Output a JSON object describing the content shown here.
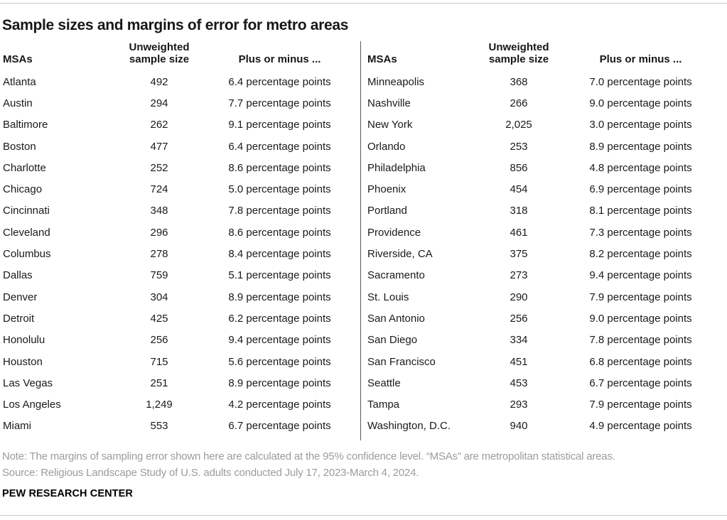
{
  "title": "Sample sizes and margins of error for metro areas",
  "header_labels": {
    "msa": "MSAs",
    "sample_size": "Unweighted\nsample size",
    "plus_minus": "Plus or minus ..."
  },
  "footer": {
    "note": "Note: The margins of sampling error shown here are calculated at the 95% confidence level. “MSAs” are metropolitan statistical areas.",
    "source": "Source: Religious Landscape Study of U.S. adults conducted July 17, 2023-March 4, 2024.",
    "brand": "PEW RESEARCH CENTER"
  },
  "colors": {
    "text": "#1a1a1a",
    "note_gray": "#9c9c9c",
    "rule_gray": "#c9c9c9",
    "divider_gray": "#59595b",
    "background": "#ffffff"
  },
  "chart_data": {
    "type": "table",
    "title": "Sample sizes and margins of error for metro areas",
    "columns": [
      "MSAs",
      "Unweighted sample size",
      "Plus or minus ..."
    ],
    "left_rows": [
      [
        "Atlanta",
        "492",
        "6.4 percentage points"
      ],
      [
        "Austin",
        "294",
        "7.7 percentage points"
      ],
      [
        "Baltimore",
        "262",
        "9.1 percentage points"
      ],
      [
        "Boston",
        "477",
        "6.4 percentage points"
      ],
      [
        "Charlotte",
        "252",
        "8.6 percentage points"
      ],
      [
        "Chicago",
        "724",
        "5.0 percentage points"
      ],
      [
        "Cincinnati",
        "348",
        "7.8 percentage points"
      ],
      [
        "Cleveland",
        "296",
        "8.6 percentage points"
      ],
      [
        "Columbus",
        "278",
        "8.4 percentage points"
      ],
      [
        "Dallas",
        "759",
        "5.1 percentage points"
      ],
      [
        "Denver",
        "304",
        "8.9 percentage points"
      ],
      [
        "Detroit",
        "425",
        "6.2 percentage points"
      ],
      [
        "Honolulu",
        "256",
        "9.4 percentage points"
      ],
      [
        "Houston",
        "715",
        "5.6 percentage points"
      ],
      [
        "Las Vegas",
        "251",
        "8.9 percentage points"
      ],
      [
        "Los Angeles",
        "1,249",
        "4.2 percentage points"
      ],
      [
        "Miami",
        "553",
        "6.7 percentage points"
      ]
    ],
    "right_rows": [
      [
        "Minneapolis",
        "368",
        "7.0 percentage points"
      ],
      [
        "Nashville",
        "266",
        "9.0 percentage points"
      ],
      [
        "New York",
        "2,025",
        "3.0 percentage points"
      ],
      [
        "Orlando",
        "253",
        "8.9 percentage points"
      ],
      [
        "Philadelphia",
        "856",
        "4.8 percentage points"
      ],
      [
        "Phoenix",
        "454",
        "6.9 percentage points"
      ],
      [
        "Portland",
        "318",
        "8.1 percentage points"
      ],
      [
        "Providence",
        "461",
        "7.3 percentage points"
      ],
      [
        "Riverside, CA",
        "375",
        "8.2 percentage points"
      ],
      [
        "Sacramento",
        "273",
        "9.4 percentage points"
      ],
      [
        "St. Louis",
        "290",
        "7.9 percentage points"
      ],
      [
        "San Antonio",
        "256",
        "9.0 percentage points"
      ],
      [
        "San Diego",
        "334",
        "7.8 percentage points"
      ],
      [
        "San Francisco",
        "451",
        "6.8 percentage points"
      ],
      [
        "Seattle",
        "453",
        "6.7 percentage points"
      ],
      [
        "Tampa",
        "293",
        "7.9 percentage points"
      ],
      [
        "Washington, D.C.",
        "940",
        "4.9 percentage points"
      ]
    ]
  }
}
